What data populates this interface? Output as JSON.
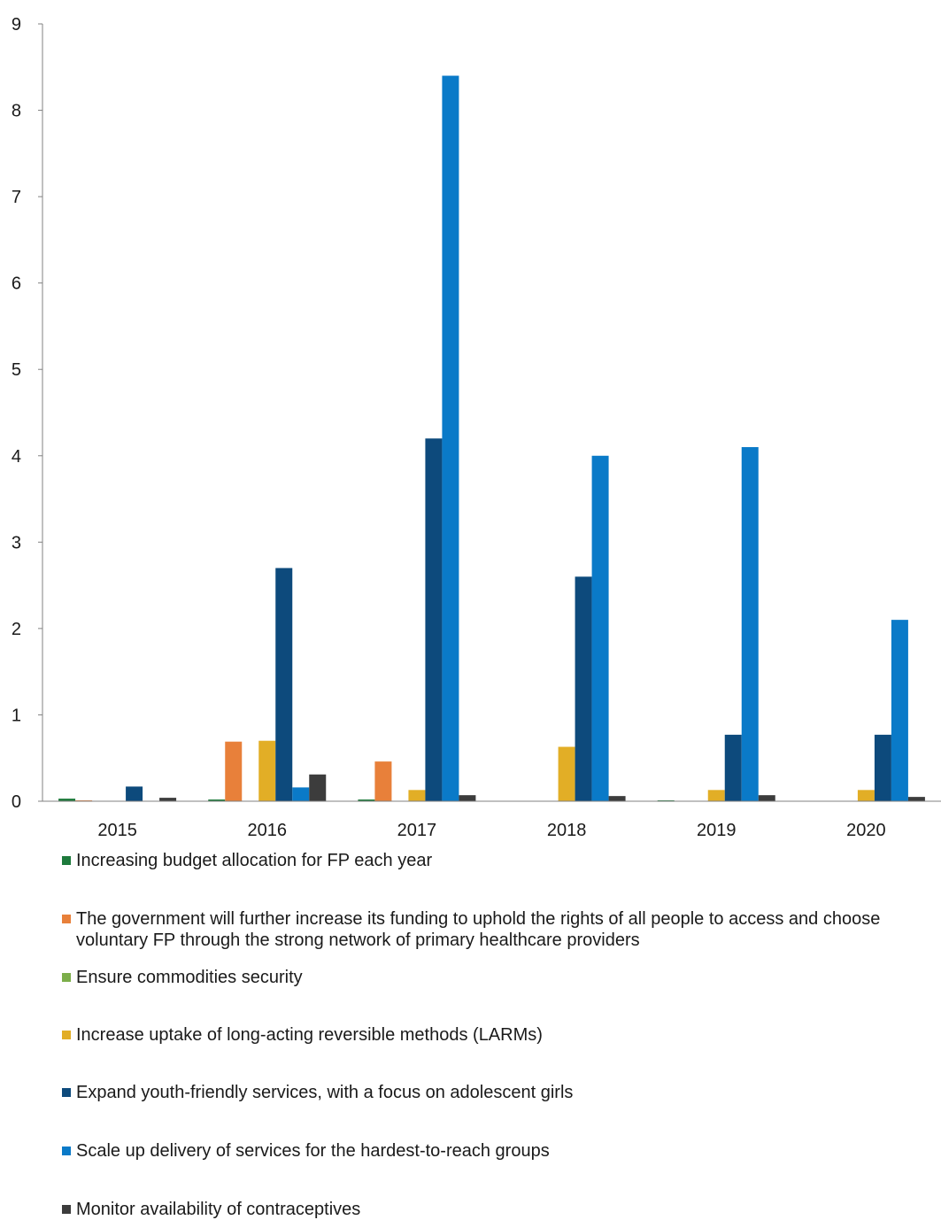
{
  "chart_data": {
    "type": "bar",
    "title": "",
    "xlabel": "",
    "ylabel": "",
    "ylim": [
      0,
      9
    ],
    "yticks": [
      "0",
      "1",
      "2",
      "3",
      "4",
      "5",
      "6",
      "7",
      "8",
      "9"
    ],
    "categories": [
      "2015",
      "2016",
      "2017",
      "2018",
      "2019",
      "2020"
    ],
    "legend_position": "bottom",
    "series": [
      {
        "name": "Increasing budget allocation for FP each year",
        "color": "#1e7a3c",
        "values": [
          0.03,
          0.02,
          0.02,
          0.0,
          0.01,
          0.0
        ]
      },
      {
        "name": "The government will further increase its funding to uphold the rights of all people to access and choose voluntary FP through the strong network of primary healthcare providers",
        "color": "#e8803a",
        "values": [
          0.01,
          0.69,
          0.46,
          0.0,
          0.0,
          0.0
        ]
      },
      {
        "name": "Ensure commodities security",
        "color": "#7cae4a",
        "values": [
          0.0,
          0.0,
          0.0,
          0.0,
          0.0,
          0.0
        ]
      },
      {
        "name": "Increase uptake of long-acting reversible methods (LARMs)",
        "color": "#e2ae26",
        "values": [
          0.0,
          0.7,
          0.13,
          0.63,
          0.13,
          0.13
        ]
      },
      {
        "name": "Expand youth-friendly services, with a focus on adolescent girls",
        "color": "#0d4a7c",
        "values": [
          0.17,
          2.7,
          4.2,
          2.6,
          0.77,
          0.77
        ]
      },
      {
        "name": "Scale up delivery of services for the hardest-to-reach groups",
        "color": "#0a7ac8",
        "values": [
          0.0,
          0.16,
          8.4,
          4.0,
          4.1,
          2.1
        ]
      },
      {
        "name": "Monitor availability of contraceptives",
        "color": "#3c3c3c",
        "values": [
          0.04,
          0.31,
          0.07,
          0.06,
          0.07,
          0.05
        ]
      }
    ]
  }
}
